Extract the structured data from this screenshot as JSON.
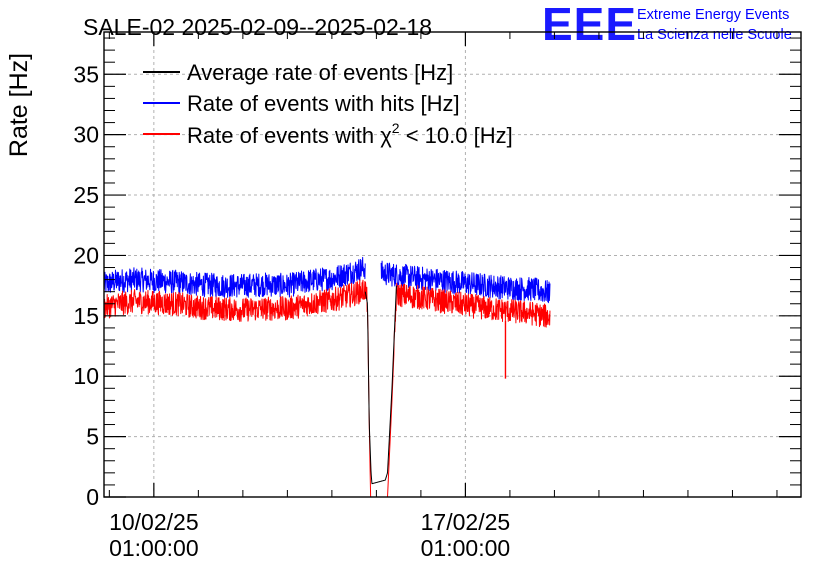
{
  "chart_data": {
    "type": "line",
    "title": "SALE-02 2025-02-09--2025-02-18",
    "ylabel": "Rate [Hz]",
    "xlabel": "",
    "ylim": [
      0,
      38.5
    ],
    "xlim_days": [
      -1.12,
      14.54
    ],
    "grid": true,
    "legend_position": "top-left",
    "y_ticks": [
      0,
      5,
      10,
      15,
      20,
      25,
      30,
      35
    ],
    "x_ticks": [
      {
        "day": 0,
        "date": "10/02/25",
        "time": "01:00:00"
      },
      {
        "day": 7,
        "date": "17/02/25",
        "time": "01:00:00"
      }
    ],
    "logo": {
      "text": "EEE",
      "line1": "Extreme Energy Events",
      "line2": "La Scienza nelle Scuole"
    },
    "series": [
      {
        "name": "Rate of events with hits [Hz]",
        "legend_text": "Rate of events with hits [Hz]",
        "color": "#0000ff",
        "x": [
          -1.12,
          -0.8,
          -0.4,
          0.0,
          0.5,
          1.0,
          1.5,
          2.0,
          2.5,
          3.0,
          3.5,
          4.0,
          4.5,
          4.75,
          4.8,
          5.1,
          5.1,
          5.2,
          5.6,
          6.0,
          6.5,
          7.0,
          7.5,
          8.0,
          8.5,
          8.9
        ],
        "values": [
          17.6,
          17.9,
          18.0,
          17.9,
          17.8,
          17.6,
          17.5,
          17.5,
          17.6,
          17.5,
          17.9,
          18.1,
          18.7,
          19.0,
          null,
          null,
          18.6,
          18.5,
          18.3,
          18.1,
          17.9,
          17.7,
          17.5,
          17.3,
          17.2,
          16.9
        ],
        "noise": 1.0
      },
      {
        "name": "Rate of events with chi2 < 10.0 [Hz]",
        "legend_prefix": "Rate of events with ",
        "legend_chi": "χ",
        "legend_sup": "2",
        "legend_suffix": " < 10.0 [Hz]",
        "color": "#ff0000",
        "x": [
          -1.12,
          -0.8,
          -0.4,
          0.0,
          0.5,
          1.0,
          1.5,
          2.0,
          2.5,
          3.0,
          3.5,
          4.0,
          4.5,
          4.75,
          4.8,
          4.84,
          4.87,
          5.2,
          5.25,
          5.35,
          5.45,
          5.6,
          6.0,
          6.5,
          7.0,
          7.5,
          8.0,
          8.5,
          8.9
        ],
        "values": [
          15.7,
          16.0,
          16.2,
          16.1,
          16.0,
          15.7,
          15.6,
          15.5,
          15.6,
          15.6,
          16.0,
          16.3,
          16.8,
          17.2,
          16.0,
          6.0,
          0.0,
          0.0,
          0.0,
          8.0,
          16.8,
          16.7,
          16.5,
          16.2,
          15.9,
          15.6,
          15.4,
          15.2,
          14.9
        ],
        "noise": 1.0,
        "spike": {
          "day": 7.9,
          "value": 9.8
        }
      },
      {
        "name": "Average rate of events [Hz]",
        "legend_text": "Average rate of events [Hz]",
        "color": "#000000",
        "x": [
          4.75,
          4.8,
          4.84,
          4.88,
          4.9,
          5.2,
          5.25,
          5.35,
          5.45
        ],
        "values": [
          17.0,
          16.0,
          6.0,
          2.0,
          1.1,
          1.4,
          2.0,
          9.0,
          17.5
        ],
        "noise": 0.0
      }
    ]
  }
}
